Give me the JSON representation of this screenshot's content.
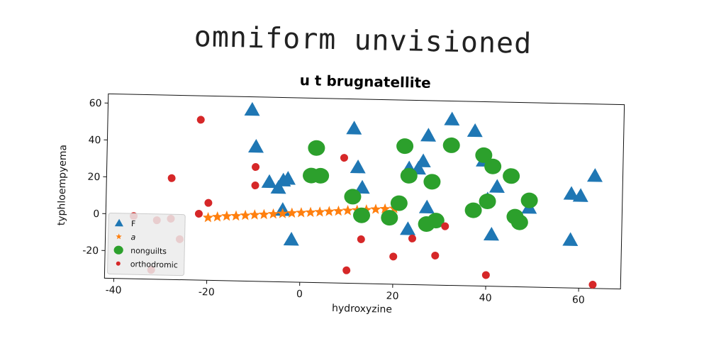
{
  "page_title": "omniform unvisioned",
  "colors": {
    "F": "#1f77b4",
    "a": "#ff7f0e",
    "nonguilts": "#2ca02c",
    "orthodromic": "#d62728"
  },
  "chart_data": {
    "type": "scatter",
    "title": "u t brugnatellite",
    "xlabel": "hydroxyzine",
    "ylabel": "typhloempyema",
    "xlim": [
      -42,
      69
    ],
    "ylim": [
      -35,
      65
    ],
    "xticks": [
      -40,
      -20,
      0,
      20,
      40,
      60
    ],
    "yticks": [
      -20,
      0,
      20,
      40,
      60
    ],
    "grid": false,
    "legend_position": "lower-left",
    "series": [
      {
        "name": "F",
        "marker": "triangle",
        "points": [
          [
            -11,
            58
          ],
          [
            -10,
            38
          ],
          [
            -7,
            19
          ],
          [
            -5,
            16
          ],
          [
            -4,
            20
          ],
          [
            -3,
            21
          ],
          [
            -4,
            4
          ],
          [
            -2,
            -12
          ],
          [
            11,
            49
          ],
          [
            12,
            28
          ],
          [
            13,
            17
          ],
          [
            23,
            28
          ],
          [
            25,
            28
          ],
          [
            26,
            32
          ],
          [
            27,
            7
          ],
          [
            27,
            46
          ],
          [
            23,
            -5
          ],
          [
            32,
            55
          ],
          [
            37,
            49
          ],
          [
            39,
            33
          ],
          [
            40,
            12
          ],
          [
            41,
            -7
          ],
          [
            42,
            19
          ],
          [
            49,
            8
          ],
          [
            58,
            16
          ],
          [
            60,
            15
          ],
          [
            58,
            -9
          ],
          [
            63,
            26
          ]
        ]
      },
      {
        "name": "a",
        "marker": "star",
        "points": [
          [
            -20,
            -1
          ],
          [
            -18,
            -0.5
          ],
          [
            -16,
            0
          ],
          [
            -14,
            0.2
          ],
          [
            -12,
            0.6
          ],
          [
            -10,
            1
          ],
          [
            -8,
            1.3
          ],
          [
            -6,
            1.7
          ],
          [
            -4,
            2
          ],
          [
            -2,
            2.4
          ],
          [
            0,
            2.7
          ],
          [
            2,
            3
          ],
          [
            4,
            3.3
          ],
          [
            6,
            3.7
          ],
          [
            8,
            4
          ],
          [
            10,
            4.4
          ],
          [
            12,
            4.7
          ],
          [
            14,
            5
          ],
          [
            16,
            5.4
          ],
          [
            18,
            5.7
          ],
          [
            20,
            6
          ]
        ]
      },
      {
        "name": "nonguilts",
        "marker": "circle",
        "points": [
          [
            3,
            38
          ],
          [
            2,
            23
          ],
          [
            4,
            23
          ],
          [
            11,
            12
          ],
          [
            13,
            2
          ],
          [
            19,
            1
          ],
          [
            21,
            9
          ],
          [
            22,
            40
          ],
          [
            23,
            24
          ],
          [
            28,
            21
          ],
          [
            27,
            -2
          ],
          [
            29,
            0
          ],
          [
            32,
            41
          ],
          [
            37,
            6
          ],
          [
            39,
            36
          ],
          [
            40,
            11
          ],
          [
            41,
            30
          ],
          [
            45,
            25
          ],
          [
            46,
            3
          ],
          [
            47,
            0
          ],
          [
            49,
            12
          ]
        ]
      },
      {
        "name": "orthodromic",
        "marker": "dot",
        "points": [
          [
            -36,
            -1
          ],
          [
            -31,
            -3
          ],
          [
            -28,
            20
          ],
          [
            -28,
            -2
          ],
          [
            -26,
            -13
          ],
          [
            -22,
            52
          ],
          [
            -22,
            1
          ],
          [
            -20,
            7
          ],
          [
            -10,
            27
          ],
          [
            -10,
            17
          ],
          [
            9,
            33
          ],
          [
            10,
            -28
          ],
          [
            13,
            -11
          ],
          [
            20,
            -20
          ],
          [
            24,
            -10
          ],
          [
            29,
            -19
          ],
          [
            31,
            -3
          ],
          [
            40,
            -29
          ],
          [
            63,
            -33
          ],
          [
            -32,
            -30
          ]
        ]
      }
    ]
  }
}
